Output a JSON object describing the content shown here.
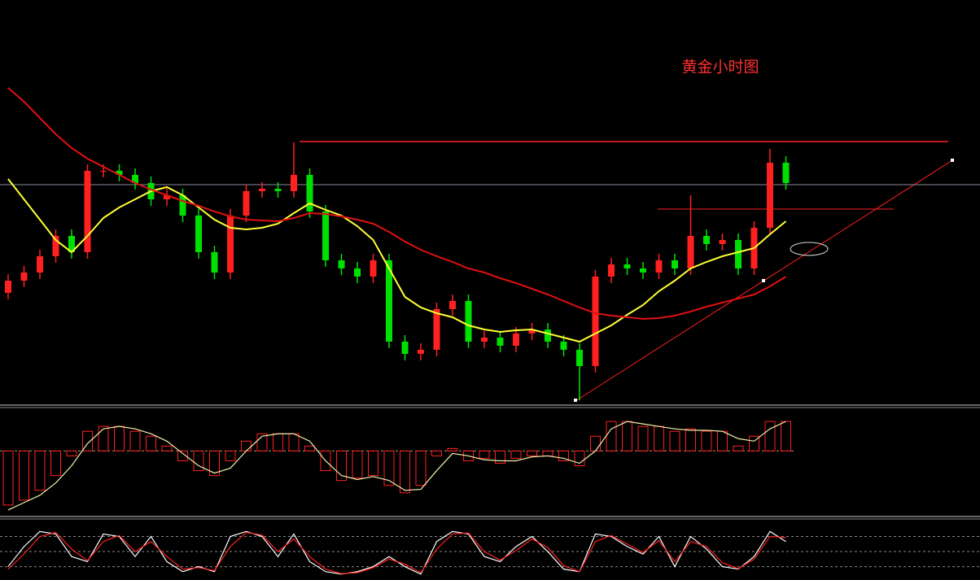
{
  "chart_data": [
    {
      "type": "candlestick",
      "title": "黄金小时图",
      "title_color": "#ff3030",
      "ylim": [
        0,
        500
      ],
      "up_color": "#ff2020",
      "down_color": "#00e000",
      "open": [
        140,
        155,
        165,
        185,
        210,
        190,
        290,
        290,
        285,
        275,
        255,
        260,
        235,
        190,
        165,
        235,
        265,
        268,
        265,
        285,
        240,
        180,
        170,
        160,
        180,
        80,
        65,
        70,
        120,
        130,
        80,
        85,
        75,
        90,
        95,
        80,
        70,
        50,
        160,
        175,
        170,
        165,
        180,
        170,
        210,
        200,
        205,
        170,
        220,
        300
      ],
      "high": [
        163,
        173,
        193,
        218,
        218,
        298,
        298,
        298,
        293,
        283,
        268,
        268,
        243,
        198,
        243,
        273,
        276,
        276,
        325,
        293,
        248,
        188,
        178,
        188,
        188,
        88,
        78,
        128,
        138,
        138,
        93,
        93,
        98,
        103,
        103,
        88,
        78,
        168,
        183,
        183,
        178,
        188,
        188,
        260,
        218,
        213,
        213,
        228,
        317,
        308
      ],
      "low": [
        132,
        147,
        157,
        177,
        182,
        182,
        282,
        277,
        267,
        247,
        247,
        227,
        182,
        157,
        157,
        227,
        257,
        257,
        257,
        232,
        172,
        162,
        152,
        152,
        72,
        57,
        57,
        62,
        112,
        72,
        72,
        67,
        67,
        82,
        72,
        62,
        8,
        42,
        152,
        162,
        157,
        157,
        162,
        162,
        192,
        192,
        162,
        162,
        212,
        267
      ],
      "close": [
        155,
        165,
        185,
        210,
        190,
        290,
        290,
        285,
        275,
        255,
        260,
        235,
        190,
        165,
        235,
        265,
        268,
        265,
        285,
        240,
        180,
        170,
        160,
        180,
        80,
        65,
        70,
        120,
        130,
        80,
        85,
        75,
        90,
        95,
        80,
        70,
        50,
        160,
        175,
        170,
        165,
        180,
        170,
        210,
        200,
        205,
        170,
        220,
        300,
        275
      ],
      "series": [
        {
          "color": "#ffff33",
          "values": [
            280,
            255,
            230,
            205,
            190,
            210,
            232,
            245,
            255,
            265,
            270,
            260,
            245,
            230,
            220,
            218,
            220,
            225,
            238,
            250,
            242,
            235,
            222,
            205,
            170,
            135,
            122,
            115,
            110,
            100,
            95,
            92,
            94,
            95,
            90,
            85,
            80,
            90,
            100,
            113,
            125,
            142,
            155,
            170,
            178,
            185,
            190,
            195,
            212,
            228
          ]
        },
        {
          "color": "#e01010",
          "values": [
            392,
            375,
            355,
            335,
            318,
            305,
            295,
            285,
            275,
            267,
            260,
            253,
            247,
            240,
            234,
            230,
            229,
            228,
            232,
            238,
            237,
            234,
            230,
            225,
            215,
            203,
            193,
            185,
            178,
            170,
            165,
            158,
            152,
            145,
            138,
            130,
            122,
            115,
            112,
            110,
            108,
            109,
            112,
            117,
            123,
            128,
            133,
            138,
            148,
            160
          ]
        }
      ],
      "levels": [
        {
          "value": 326,
          "color": "#ff2020"
        },
        {
          "value": 273,
          "color": "#8a8aa0"
        },
        {
          "value": 243,
          "color": "#ff2020"
        }
      ]
    },
    {
      "type": "macd",
      "ylim": [
        -1.3,
        0.85
      ],
      "bars": {
        "color": "#ff2020",
        "values": [
          -1.1,
          -1.0,
          -0.8,
          -0.5,
          -0.1,
          0.4,
          0.5,
          0.5,
          0.4,
          0.3,
          0.1,
          -0.2,
          -0.4,
          -0.5,
          -0.2,
          0.2,
          0.35,
          0.35,
          0.35,
          0.1,
          -0.4,
          -0.6,
          -0.55,
          -0.5,
          -0.7,
          -0.85,
          -0.7,
          -0.1,
          0.05,
          -0.2,
          -0.15,
          -0.25,
          -0.15,
          -0.1,
          -0.1,
          -0.2,
          -0.3,
          0.3,
          0.6,
          0.6,
          0.5,
          0.5,
          0.4,
          0.45,
          0.4,
          0.4,
          0.1,
          0.3,
          0.6,
          0.6
        ]
      },
      "series": [
        {
          "color": "#f0f0b0",
          "values": [
            -1.2,
            -1.05,
            -0.9,
            -0.65,
            -0.3,
            0.15,
            0.45,
            0.5,
            0.45,
            0.35,
            0.2,
            -0.05,
            -0.3,
            -0.45,
            -0.35,
            0.0,
            0.3,
            0.35,
            0.35,
            0.2,
            -0.2,
            -0.5,
            -0.58,
            -0.52,
            -0.6,
            -0.8,
            -0.78,
            -0.4,
            -0.05,
            -0.1,
            -0.18,
            -0.2,
            -0.2,
            -0.12,
            -0.1,
            -0.15,
            -0.25,
            0.0,
            0.45,
            0.6,
            0.55,
            0.5,
            0.45,
            0.42,
            0.42,
            0.4,
            0.25,
            0.2,
            0.45,
            0.6
          ]
        }
      ]
    },
    {
      "type": "line",
      "ylim": [
        -5,
        110
      ],
      "ylevels": [
        20,
        50,
        80
      ],
      "series": [
        {
          "color": "#ffffff",
          "values": [
            20,
            60,
            90,
            85,
            40,
            30,
            85,
            80,
            40,
            80,
            30,
            10,
            20,
            10,
            80,
            90,
            80,
            40,
            85,
            30,
            10,
            5,
            10,
            20,
            40,
            20,
            5,
            70,
            90,
            85,
            40,
            30,
            60,
            80,
            50,
            15,
            10,
            85,
            80,
            60,
            45,
            80,
            20,
            80,
            55,
            20,
            15,
            40,
            90,
            70
          ]
        },
        {
          "color": "#ff2020",
          "values": [
            15,
            45,
            80,
            88,
            55,
            32,
            70,
            82,
            50,
            70,
            40,
            15,
            18,
            12,
            60,
            88,
            83,
            50,
            75,
            40,
            15,
            6,
            8,
            18,
            35,
            25,
            8,
            55,
            85,
            87,
            50,
            33,
            52,
            75,
            58,
            22,
            10,
            70,
            82,
            65,
            48,
            72,
            30,
            70,
            60,
            28,
            16,
            35,
            80,
            78
          ]
        }
      ]
    }
  ]
}
